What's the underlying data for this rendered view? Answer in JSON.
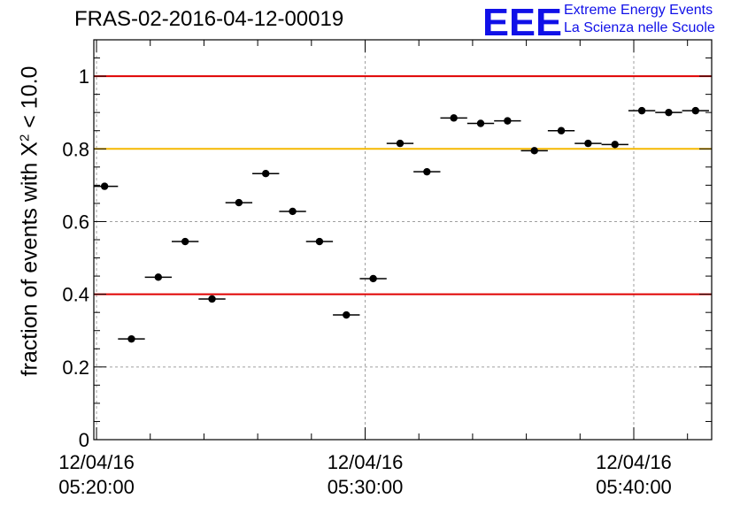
{
  "header": {
    "title": "FRAS-02-2016-04-12-00019",
    "logo_letters": "EEE",
    "logo_line1": "Extreme Energy Events",
    "logo_line2": "La Scienza nelle Scuole"
  },
  "colors": {
    "marker": "#000000",
    "red_line": "#e00000",
    "orange_line": "#f5b800",
    "logo_blue": "#1010e8",
    "grid": "#a0a0a0"
  },
  "chart_data": {
    "type": "scatter",
    "title": "FRAS-02-2016-04-12-00019",
    "ylabel_main": "fraction of events with X",
    "ylabel_sup": "2",
    "ylabel_tail": " < 10.0",
    "xlabel": "",
    "x_unit": "minutes after 12/04/16 05:20:00",
    "x_range": [
      -0.1,
      22.9
    ],
    "ylim": [
      0,
      1.1
    ],
    "yticks": [
      0,
      0.2,
      0.4,
      0.6,
      0.8,
      1
    ],
    "ytick_labels": [
      "0",
      "0.2",
      "0.4",
      "0.6",
      "0.8",
      "1"
    ],
    "xticks_major": [
      0,
      10,
      20
    ],
    "xtick_labels": [
      [
        "12/04/16",
        "05:20:00"
      ],
      [
        "12/04/16",
        "05:30:00"
      ],
      [
        "12/04/16",
        "05:40:00"
      ]
    ],
    "grid": true,
    "reference_lines": [
      {
        "y": 1.0,
        "color": "red"
      },
      {
        "y": 0.8,
        "color": "orange"
      },
      {
        "y": 0.4,
        "color": "red"
      }
    ],
    "bin_width_minutes": 1.0,
    "x": [
      0.3,
      1.3,
      2.3,
      3.3,
      4.3,
      5.3,
      6.3,
      7.3,
      8.3,
      9.3,
      10.3,
      11.3,
      12.3,
      13.3,
      14.3,
      15.3,
      16.3,
      17.3,
      18.3,
      19.3,
      20.3,
      21.3,
      22.3
    ],
    "y": [
      0.697,
      0.277,
      0.447,
      0.545,
      0.387,
      0.652,
      0.732,
      0.628,
      0.545,
      0.343,
      0.443,
      0.815,
      0.737,
      0.885,
      0.87,
      0.877,
      0.795,
      0.85,
      0.815,
      0.812,
      0.905,
      0.9,
      0.905
    ]
  }
}
